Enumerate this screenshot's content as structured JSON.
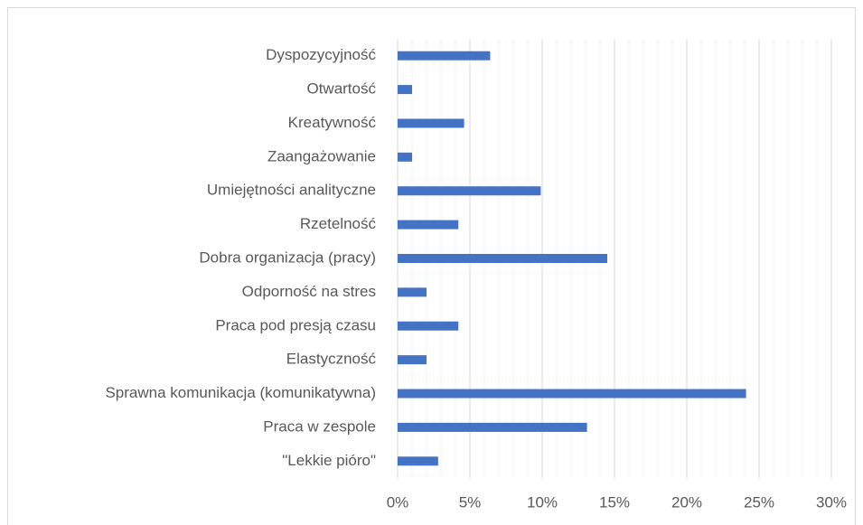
{
  "chart_data": {
    "type": "hbar",
    "categories": [
      "Dyspozycyjność",
      "Otwartość",
      "Kreatywność",
      "Zaangażowanie",
      "Umiejętności analityczne",
      "Rzetelność",
      "Dobra organizacja (pracy)",
      "Odporność na stres",
      "Praca pod presją czasu",
      "Elastyczność",
      "Sprawna komunikacja (komunikatywna)",
      "Praca w zespole",
      "\"Lekkie pióro\""
    ],
    "values": [
      6.4,
      1.0,
      4.6,
      1.0,
      9.9,
      4.2,
      14.5,
      2.0,
      4.2,
      2.0,
      24.1,
      13.1,
      2.8
    ],
    "color": "#4472c4",
    "xlim": [
      0,
      30
    ],
    "xticks": [
      {
        "value": 0,
        "label": "0%"
      },
      {
        "value": 5,
        "label": "5%"
      },
      {
        "value": 10,
        "label": "10%"
      },
      {
        "value": 15,
        "label": "15%"
      },
      {
        "value": 20,
        "label": "20%"
      },
      {
        "value": 25,
        "label": "25%"
      },
      {
        "value": 30,
        "label": "30%"
      }
    ],
    "minor_xticks": [
      1,
      2,
      3,
      4,
      6,
      7,
      8,
      9,
      11,
      12,
      13,
      14,
      16,
      17,
      18,
      19,
      21,
      22,
      23,
      24,
      26,
      27,
      28,
      29
    ],
    "grid": true
  }
}
